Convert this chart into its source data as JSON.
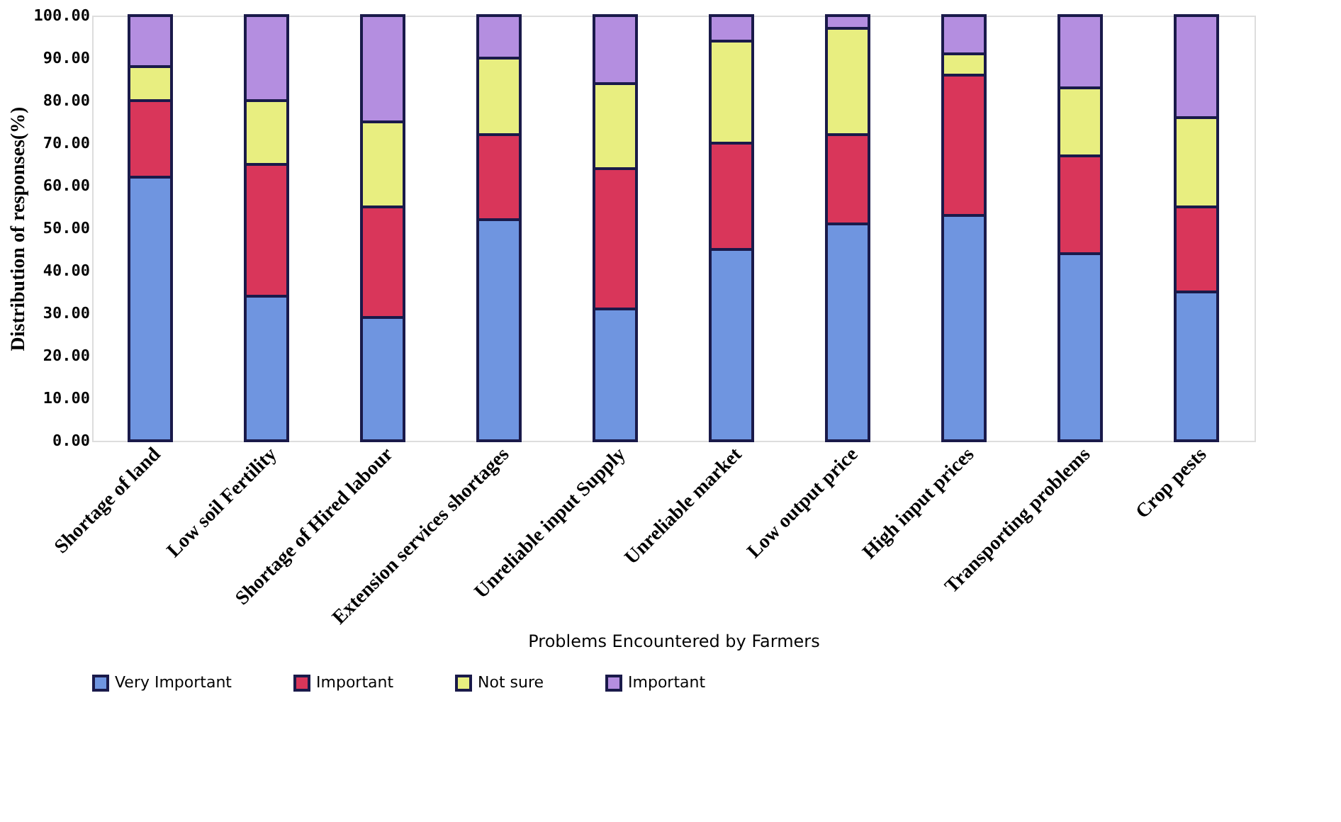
{
  "chart_data": {
    "type": "bar",
    "stacked": true,
    "xlabel": "Problems Encountered by Farmers",
    "ylabel": "Distribution of responses(%)",
    "categories": [
      "Shortage of land",
      "Low soil Fertility",
      "Shortage of Hired labour",
      "Extension services shortages",
      "Unreliable input Supply",
      "Unreliable market",
      "Low output price",
      "High input prices",
      "Transporting problems",
      "Crop pests"
    ],
    "series": [
      {
        "name": "Very Important",
        "color": "#6f95e0",
        "values": [
          62,
          34,
          29,
          52,
          31,
          45,
          51,
          53,
          44,
          35
        ]
      },
      {
        "name": "Important",
        "color": "#d9365a",
        "values": [
          18,
          31,
          26,
          20,
          33,
          25,
          21,
          33,
          23,
          20
        ]
      },
      {
        "name": "Not sure",
        "color": "#e8ee80",
        "values": [
          8,
          15,
          20,
          18,
          20,
          24,
          25,
          5,
          16,
          21
        ]
      },
      {
        "name": "Important",
        "color": "#b48ee0",
        "values": [
          12,
          20,
          25,
          10,
          16,
          6,
          3,
          9,
          17,
          24
        ]
      }
    ],
    "ylim": [
      0,
      100
    ],
    "yticks": [
      {
        "value": 0,
        "label": "0.00"
      },
      {
        "value": 10,
        "label": "10.00"
      },
      {
        "value": 20,
        "label": "20.00"
      },
      {
        "value": 30,
        "label": "30.00"
      },
      {
        "value": 40,
        "label": "40.00"
      },
      {
        "value": 50,
        "label": "50.00"
      },
      {
        "value": 60,
        "label": "60.00"
      },
      {
        "value": 70,
        "label": "70.00"
      },
      {
        "value": 80,
        "label": "80.00"
      },
      {
        "value": 90,
        "label": "90.00"
      },
      {
        "value": 100,
        "label": "100.00"
      }
    ],
    "grid": false,
    "legend": "bottom"
  }
}
